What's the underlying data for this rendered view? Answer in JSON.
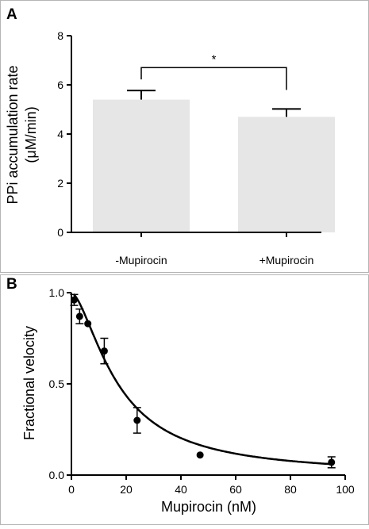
{
  "figure": {
    "panels": [
      {
        "letter": "A"
      },
      {
        "letter": "B"
      }
    ]
  },
  "chart_data": [
    {
      "panel": "A",
      "type": "bar",
      "categories": [
        "-Mupirocin",
        "+Mupirocin"
      ],
      "values": [
        5.4,
        4.7
      ],
      "errors": [
        0.37,
        0.32
      ],
      "bar_color": "#e6e6e6",
      "ylabel_line1": "PPi accumulation rate",
      "ylabel_line2": "(μM/min)",
      "ylim": [
        0,
        8
      ],
      "yticks": [
        0,
        2,
        4,
        6,
        8
      ],
      "significance": {
        "between": [
          0,
          1
        ],
        "level": 6.7,
        "label": "*"
      },
      "grid": false
    },
    {
      "panel": "B",
      "type": "scatter",
      "series": [
        {
          "x": [
            1,
            3,
            6,
            12,
            24,
            47,
            95
          ],
          "y": [
            0.96,
            0.87,
            0.83,
            0.68,
            0.3,
            0.11,
            0.07
          ],
          "err": [
            0.03,
            0.04,
            0.0,
            0.07,
            0.07,
            0.0,
            0.03
          ]
        }
      ],
      "fit_curve": {
        "model": "ic50",
        "ic50": 17,
        "hill": 1.6,
        "top": 1.0,
        "bottom": 0.0
      },
      "xlabel": "Mupirocin (nM)",
      "ylabel": "Fractional velocity",
      "xlim": [
        0,
        100
      ],
      "ylim": [
        0,
        1.0
      ],
      "xticks": [
        0,
        20,
        40,
        60,
        80,
        100
      ],
      "yticks": [
        0.0,
        0.5,
        1.0
      ],
      "ytick_labels": [
        "0.0",
        "0.5",
        "1.0"
      ],
      "grid": false
    }
  ]
}
